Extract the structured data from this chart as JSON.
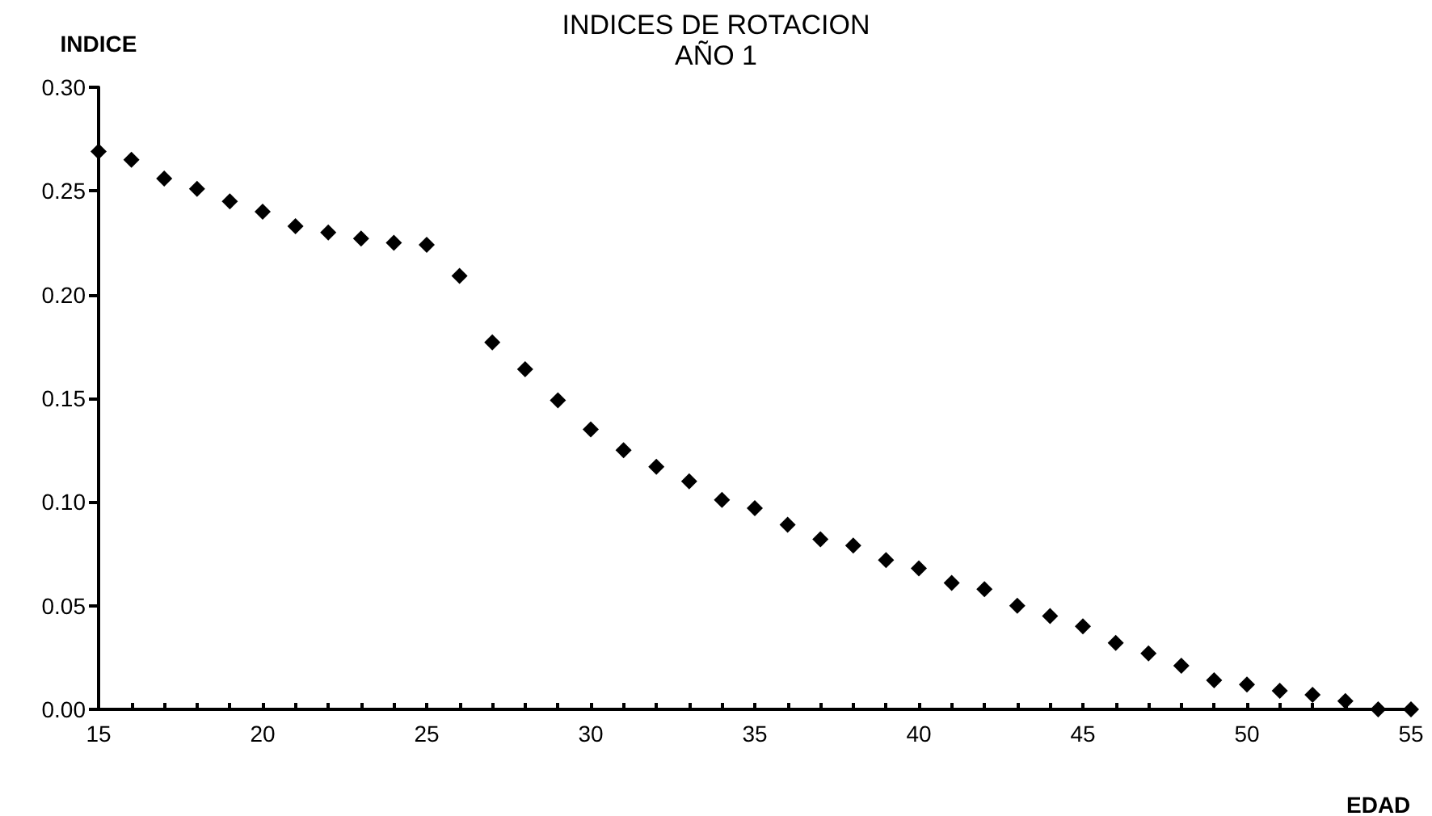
{
  "chart_data": {
    "type": "scatter",
    "title": "INDICES DE ROTACION",
    "subtitle": "AÑO 1",
    "xlabel": "EDAD",
    "ylabel": "INDICE",
    "x": [
      15,
      16,
      17,
      18,
      19,
      20,
      21,
      22,
      23,
      24,
      25,
      26,
      27,
      28,
      29,
      30,
      31,
      32,
      33,
      34,
      35,
      36,
      37,
      38,
      39,
      40,
      41,
      42,
      43,
      44,
      45,
      46,
      47,
      48,
      49,
      50,
      51,
      52,
      53,
      54,
      55
    ],
    "series": [
      {
        "color": "#000000",
        "values": [
          0.269,
          0.265,
          0.256,
          0.251,
          0.245,
          0.24,
          0.233,
          0.23,
          0.227,
          0.225,
          0.224,
          0.209,
          0.177,
          0.164,
          0.149,
          0.135,
          0.125,
          0.117,
          0.11,
          0.101,
          0.097,
          0.089,
          0.082,
          0.079,
          0.072,
          0.068,
          0.061,
          0.058,
          0.05,
          0.045,
          0.04,
          0.032,
          0.027,
          0.021,
          0.014,
          0.012,
          0.009,
          0.007,
          0.004,
          0.0,
          0.0
        ]
      }
    ],
    "xlim": [
      15,
      55
    ],
    "xticks": [
      15,
      {
        "value": 16,
        "label": null
      },
      {
        "value": 17,
        "label": null
      },
      {
        "value": 18,
        "label": null
      },
      {
        "value": 19,
        "label": null
      },
      20,
      {
        "value": 21,
        "label": null
      },
      {
        "value": 22,
        "label": null
      },
      {
        "value": 23,
        "label": null
      },
      {
        "value": 24,
        "label": null
      },
      25,
      {
        "value": 26,
        "label": null
      },
      {
        "value": 27,
        "label": null
      },
      {
        "value": 28,
        "label": null
      },
      {
        "value": 29,
        "label": null
      },
      30,
      {
        "value": 31,
        "label": null
      },
      {
        "value": 32,
        "label": null
      },
      {
        "value": 33,
        "label": null
      },
      {
        "value": 34,
        "label": null
      },
      35,
      {
        "value": 36,
        "label": null
      },
      {
        "value": 37,
        "label": null
      },
      {
        "value": 38,
        "label": null
      },
      {
        "value": 39,
        "label": null
      },
      40,
      {
        "value": 41,
        "label": null
      },
      {
        "value": 42,
        "label": null
      },
      {
        "value": 43,
        "label": null
      },
      {
        "value": 44,
        "label": null
      },
      45,
      {
        "value": 46,
        "label": null
      },
      {
        "value": 47,
        "label": null
      },
      {
        "value": 48,
        "label": null
      },
      {
        "value": 49,
        "label": null
      },
      50,
      {
        "value": 51,
        "label": null
      },
      {
        "value": 52,
        "label": null
      },
      {
        "value": 53,
        "label": null
      },
      {
        "value": 54,
        "label": null
      },
      55
    ],
    "ylim": [
      0,
      0.3
    ],
    "yticks": [
      {
        "value": 0,
        "label": "0.00"
      },
      {
        "value": 0.05,
        "label": "0.05"
      },
      {
        "value": 0.1,
        "label": "0.10"
      },
      {
        "value": 0.15,
        "label": "0.15"
      },
      {
        "value": 0.2,
        "label": "0.20"
      },
      {
        "value": 0.25,
        "label": "0.25"
      },
      {
        "value": 0.3,
        "label": "0.30"
      }
    ],
    "grid": false,
    "marker": "diamond"
  }
}
